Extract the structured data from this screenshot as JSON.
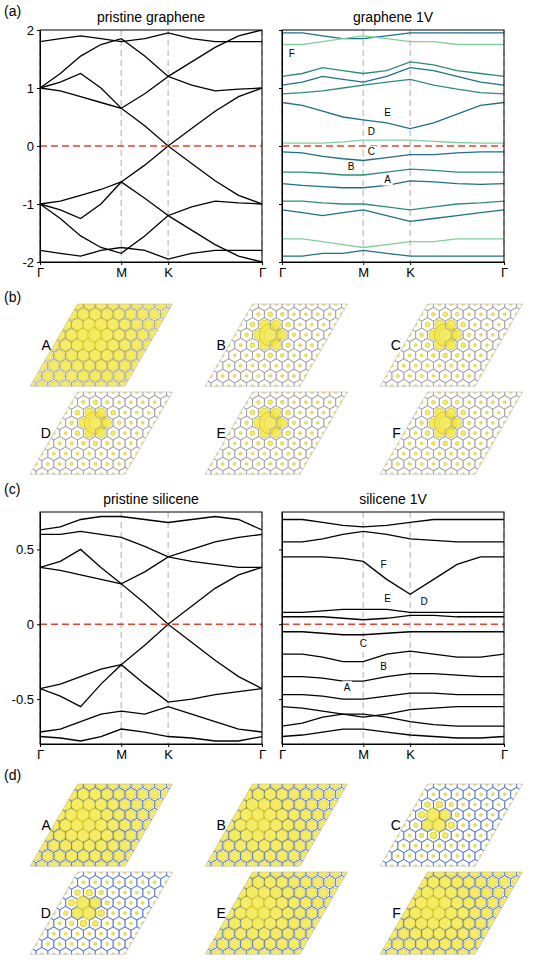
{
  "panel_labels": [
    "(a)",
    "(b)",
    "(c)",
    "(d)"
  ],
  "chart_data": [
    {
      "type": "line",
      "title": "pristine graphene",
      "color": "#000000",
      "grid": true,
      "x": [
        0,
        0.25,
        0.5,
        0.75,
        1,
        1.2887,
        1.5774,
        1.8661,
        2.1547,
        2.4434,
        2.7321
      ],
      "xlim": [
        0,
        2.7321
      ],
      "xticks": [
        {
          "value": 0,
          "label": "Γ"
        },
        {
          "value": 1,
          "label": "M"
        },
        {
          "value": 1.5774,
          "label": "K"
        },
        {
          "value": 2.7321,
          "label": "Γ"
        }
      ],
      "ylim": [
        -2,
        2
      ],
      "yticks": [
        -2,
        -1,
        0,
        1,
        2
      ],
      "fermi_level": {
        "value": 0,
        "color": "#e8412c",
        "line_style": "dashed"
      },
      "series": [
        {
          "values": [
            1.0,
            0.95,
            0.85,
            0.75,
            0.65,
            0.35,
            0.0,
            0.3,
            0.6,
            0.85,
            1.0
          ]
        },
        {
          "values": [
            1.0,
            1.1,
            1.25,
            1.0,
            0.65,
            0.9,
            1.2,
            1.05,
            0.95,
            0.98,
            1.0
          ]
        },
        {
          "values": [
            1.0,
            1.25,
            1.55,
            1.75,
            1.85,
            1.55,
            1.2,
            1.45,
            1.7,
            1.9,
            2.0
          ]
        },
        {
          "values": [
            1.8,
            1.85,
            1.9,
            1.85,
            1.8,
            1.85,
            1.95,
            1.85,
            1.8,
            1.8,
            1.8
          ]
        },
        {
          "values": [
            -1.0,
            -0.95,
            -0.85,
            -0.75,
            -0.62,
            -0.33,
            0.0,
            -0.3,
            -0.6,
            -0.85,
            -1.0
          ]
        },
        {
          "values": [
            -1.0,
            -1.1,
            -1.25,
            -1.0,
            -0.62,
            -0.9,
            -1.2,
            -1.05,
            -0.95,
            -0.98,
            -1.0
          ]
        },
        {
          "values": [
            -1.0,
            -1.25,
            -1.55,
            -1.75,
            -1.85,
            -1.55,
            -1.2,
            -1.45,
            -1.7,
            -1.9,
            -2.0
          ]
        },
        {
          "values": [
            -1.8,
            -1.85,
            -1.9,
            -1.8,
            -1.75,
            -1.8,
            -1.95,
            -1.85,
            -1.8,
            -1.8,
            -1.8
          ]
        }
      ]
    },
    {
      "type": "line",
      "title": "graphene 1V",
      "grid": true,
      "tick_labels": "x",
      "x": [
        0,
        0.25,
        0.5,
        0.75,
        1,
        1.2887,
        1.5774,
        1.8661,
        2.1547,
        2.4434,
        2.7321
      ],
      "xlim": [
        0,
        2.7321
      ],
      "xticks": [
        {
          "value": 0,
          "label": "Γ"
        },
        {
          "value": 1,
          "label": "M"
        },
        {
          "value": 1.5774,
          "label": "K"
        },
        {
          "value": 2.7321,
          "label": "Γ"
        }
      ],
      "ylim": [
        -2,
        2
      ],
      "yticks": [
        -2,
        -1,
        0,
        1,
        2
      ],
      "fermi_level": {
        "value": 0,
        "color": "#e8412c",
        "line_style": "dashed"
      },
      "series": [
        {
          "color": "#1f6f8b",
          "values": [
            1.95,
            1.95,
            1.9,
            1.85,
            1.85,
            1.9,
            1.95,
            1.95,
            1.95,
            1.95,
            1.95
          ]
        },
        {
          "color": "#7fcf9f",
          "values": [
            1.75,
            1.75,
            1.8,
            1.85,
            1.9,
            1.85,
            1.8,
            1.8,
            1.75,
            1.75,
            1.75
          ]
        },
        {
          "color": "#2e8b7a",
          "values": [
            1.2,
            1.25,
            1.35,
            1.3,
            1.25,
            1.3,
            1.45,
            1.4,
            1.3,
            1.25,
            1.2
          ]
        },
        {
          "color": "#1f6f8b",
          "values": [
            1.05,
            1.1,
            1.2,
            1.15,
            1.1,
            1.2,
            1.35,
            1.3,
            1.2,
            1.1,
            1.05
          ]
        },
        {
          "color": "#2e8b7a",
          "values": [
            0.9,
            0.92,
            0.95,
            1.0,
            1.05,
            1.1,
            1.15,
            1.05,
            0.98,
            0.92,
            0.9
          ]
        },
        {
          "color": "#1f6f8b",
          "values": [
            0.75,
            0.7,
            0.6,
            0.5,
            0.45,
            0.4,
            0.3,
            0.4,
            0.55,
            0.7,
            0.75
          ]
        },
        {
          "color": "#7fcf9f",
          "values": [
            0.05,
            0.05,
            0.05,
            0.07,
            0.1,
            0.1,
            0.1,
            0.08,
            0.06,
            0.05,
            0.05
          ]
        },
        {
          "color": "#1f6f8b",
          "values": [
            -0.1,
            -0.12,
            -0.18,
            -0.22,
            -0.25,
            -0.2,
            -0.15,
            -0.15,
            -0.12,
            -0.1,
            -0.1
          ]
        },
        {
          "color": "#2e8b7a",
          "values": [
            -0.45,
            -0.45,
            -0.47,
            -0.5,
            -0.5,
            -0.45,
            -0.4,
            -0.42,
            -0.45,
            -0.45,
            -0.45
          ]
        },
        {
          "color": "#1f6f8b",
          "values": [
            -0.65,
            -0.68,
            -0.7,
            -0.72,
            -0.72,
            -0.68,
            -0.6,
            -0.62,
            -0.65,
            -0.66,
            -0.65
          ]
        },
        {
          "color": "#2e8b7a",
          "values": [
            -0.95,
            -0.95,
            -0.98,
            -1.0,
            -1.0,
            -1.05,
            -1.1,
            -1.05,
            -1.0,
            -0.98,
            -0.95
          ]
        },
        {
          "color": "#1f6f8b",
          "values": [
            -1.1,
            -1.15,
            -1.2,
            -1.15,
            -1.1,
            -1.2,
            -1.3,
            -1.25,
            -1.2,
            -1.15,
            -1.1
          ]
        },
        {
          "color": "#7fcf9f",
          "values": [
            -1.6,
            -1.6,
            -1.65,
            -1.7,
            -1.75,
            -1.7,
            -1.65,
            -1.65,
            -1.6,
            -1.6,
            -1.6
          ]
        },
        {
          "color": "#1f6f8b",
          "values": [
            -1.9,
            -1.9,
            -1.85,
            -1.85,
            -1.8,
            -1.85,
            -1.9,
            -1.9,
            -1.9,
            -1.9,
            -1.9
          ]
        }
      ],
      "annotations": [
        {
          "text": "F",
          "x": 0.12,
          "y": 1.6
        },
        {
          "text": "E",
          "x": 1.3,
          "y": 0.58
        },
        {
          "text": "D",
          "x": 1.1,
          "y": 0.25
        },
        {
          "text": "C",
          "x": 1.1,
          "y": -0.1
        },
        {
          "text": "B",
          "x": 0.85,
          "y": -0.36
        },
        {
          "text": "A",
          "x": 1.3,
          "y": -0.58
        }
      ]
    },
    {
      "type": "line",
      "title": "pristine silicene",
      "color": "#000000",
      "grid": true,
      "x": [
        0,
        0.25,
        0.5,
        0.75,
        1,
        1.2887,
        1.5774,
        1.8661,
        2.1547,
        2.4434,
        2.7321
      ],
      "xlim": [
        0,
        2.7321
      ],
      "xticks": [
        {
          "value": 0,
          "label": "Γ"
        },
        {
          "value": 1,
          "label": "M"
        },
        {
          "value": 1.5774,
          "label": "K"
        },
        {
          "value": 2.7321,
          "label": "Γ"
        }
      ],
      "ylim": [
        -0.8,
        0.75
      ],
      "yticks": [
        -0.5,
        0,
        0.5
      ],
      "fermi_level": {
        "value": 0,
        "color": "#e8412c",
        "line_style": "dashed"
      },
      "series": [
        {
          "values": [
            0.38,
            0.36,
            0.33,
            0.3,
            0.27,
            0.14,
            0.0,
            0.12,
            0.24,
            0.33,
            0.38
          ]
        },
        {
          "values": [
            0.38,
            0.42,
            0.5,
            0.38,
            0.27,
            0.35,
            0.45,
            0.42,
            0.4,
            0.38,
            0.38
          ]
        },
        {
          "values": [
            0.6,
            0.6,
            0.62,
            0.6,
            0.58,
            0.52,
            0.45,
            0.5,
            0.55,
            0.58,
            0.6
          ]
        },
        {
          "values": [
            0.63,
            0.65,
            0.7,
            0.72,
            0.72,
            0.7,
            0.68,
            0.7,
            0.72,
            0.7,
            0.63
          ]
        },
        {
          "values": [
            -0.43,
            -0.4,
            -0.35,
            -0.3,
            -0.27,
            -0.14,
            0.0,
            -0.12,
            -0.24,
            -0.35,
            -0.43
          ]
        },
        {
          "values": [
            -0.43,
            -0.48,
            -0.55,
            -0.4,
            -0.27,
            -0.4,
            -0.52,
            -0.5,
            -0.47,
            -0.45,
            -0.43
          ]
        },
        {
          "values": [
            -0.72,
            -0.7,
            -0.65,
            -0.6,
            -0.58,
            -0.6,
            -0.55,
            -0.6,
            -0.65,
            -0.7,
            -0.72
          ]
        },
        {
          "values": [
            -0.75,
            -0.76,
            -0.78,
            -0.75,
            -0.7,
            -0.72,
            -0.75,
            -0.76,
            -0.78,
            -0.78,
            -0.75
          ]
        }
      ]
    },
    {
      "type": "line",
      "title": "silicene 1V",
      "color": "#000000",
      "grid": true,
      "tick_labels": "x",
      "x": [
        0,
        0.25,
        0.5,
        0.75,
        1,
        1.2887,
        1.5774,
        1.8661,
        2.1547,
        2.4434,
        2.7321
      ],
      "xlim": [
        0,
        2.7321
      ],
      "xticks": [
        {
          "value": 0,
          "label": "Γ"
        },
        {
          "value": 1,
          "label": "M"
        },
        {
          "value": 1.5774,
          "label": "K"
        },
        {
          "value": 2.7321,
          "label": "Γ"
        }
      ],
      "ylim": [
        -0.8,
        0.75
      ],
      "yticks": [
        -0.5,
        0,
        0.5
      ],
      "fermi_level": {
        "value": 0,
        "color": "#e8412c",
        "line_style": "dashed"
      },
      "series": [
        {
          "values": [
            0.7,
            0.7,
            0.68,
            0.66,
            0.65,
            0.66,
            0.68,
            0.7,
            0.7,
            0.7,
            0.7
          ]
        },
        {
          "values": [
            0.55,
            0.55,
            0.57,
            0.6,
            0.62,
            0.6,
            0.57,
            0.56,
            0.55,
            0.55,
            0.55
          ]
        },
        {
          "values": [
            0.45,
            0.45,
            0.45,
            0.44,
            0.42,
            0.3,
            0.2,
            0.3,
            0.4,
            0.45,
            0.45
          ]
        },
        {
          "values": [
            0.08,
            0.08,
            0.09,
            0.1,
            0.1,
            0.1,
            0.08,
            0.08,
            0.08,
            0.08,
            0.08
          ]
        },
        {
          "values": [
            0.05,
            0.05,
            0.05,
            0.04,
            0.03,
            0.04,
            0.06,
            0.06,
            0.05,
            0.05,
            0.05
          ]
        },
        {
          "values": [
            -0.05,
            -0.05,
            -0.06,
            -0.07,
            -0.07,
            -0.06,
            -0.05,
            -0.05,
            -0.05,
            -0.05,
            -0.05
          ]
        },
        {
          "values": [
            -0.2,
            -0.2,
            -0.22,
            -0.25,
            -0.25,
            -0.2,
            -0.18,
            -0.2,
            -0.22,
            -0.22,
            -0.2
          ]
        },
        {
          "values": [
            -0.35,
            -0.35,
            -0.36,
            -0.38,
            -0.38,
            -0.35,
            -0.33,
            -0.33,
            -0.34,
            -0.35,
            -0.35
          ]
        },
        {
          "values": [
            -0.47,
            -0.47,
            -0.48,
            -0.5,
            -0.5,
            -0.48,
            -0.46,
            -0.46,
            -0.47,
            -0.47,
            -0.47
          ]
        },
        {
          "values": [
            -0.55,
            -0.56,
            -0.58,
            -0.6,
            -0.62,
            -0.6,
            -0.57,
            -0.56,
            -0.55,
            -0.55,
            -0.55
          ]
        },
        {
          "values": [
            -0.68,
            -0.66,
            -0.62,
            -0.6,
            -0.6,
            -0.62,
            -0.65,
            -0.67,
            -0.68,
            -0.68,
            -0.68
          ]
        },
        {
          "values": [
            -0.75,
            -0.74,
            -0.72,
            -0.7,
            -0.7,
            -0.72,
            -0.74,
            -0.75,
            -0.76,
            -0.76,
            -0.75
          ]
        }
      ],
      "annotations": [
        {
          "text": "F",
          "x": 1.25,
          "y": 0.4
        },
        {
          "text": "E",
          "x": 1.3,
          "y": 0.17
        },
        {
          "text": "D",
          "x": 1.75,
          "y": 0.15
        },
        {
          "text": "C",
          "x": 1.0,
          "y": -0.13
        },
        {
          "text": "B",
          "x": 1.25,
          "y": -0.28
        },
        {
          "text": "A",
          "x": 0.8,
          "y": -0.42
        }
      ]
    }
  ],
  "density_maps": [
    {
      "labels": [
        "A",
        "B",
        "C",
        "D",
        "E",
        "F"
      ]
    },
    {
      "labels": [
        "A",
        "B",
        "C",
        "D",
        "E",
        "F"
      ]
    }
  ]
}
